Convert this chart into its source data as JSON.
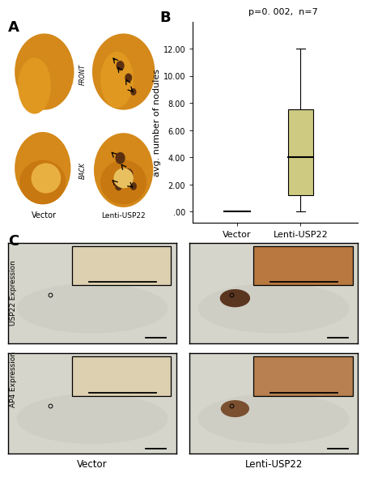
{
  "boxplot": {
    "vector_median": 0.0,
    "vector_q1": 0.0,
    "vector_q3": 0.0,
    "vector_whisker_low": 0.0,
    "vector_whisker_high": 0.0,
    "lenti_median": 4.0,
    "lenti_q1": 1.2,
    "lenti_q3": 7.5,
    "lenti_whisker_low": 0.0,
    "lenti_whisker_high": 12.0,
    "ylabel": "avg. number of nodules",
    "xlabels": [
      "Vector",
      "Lenti-USP22"
    ],
    "yticks": [
      0.0,
      2.0,
      4.0,
      6.0,
      8.0,
      10.0,
      12.0
    ],
    "ytick_labels": [
      ".00",
      "2.00",
      "4.00",
      "6.00",
      "8.00",
      "10.00",
      "12.00"
    ],
    "annotation": "p=0. 002,  n=7",
    "box_color": "#ceca82",
    "median_color": "#000000"
  },
  "background_color": "#ffffff",
  "panel_label_fontsize": 13,
  "axis_label_fontsize": 8,
  "tick_fontsize": 7,
  "annotation_fontsize": 8,
  "row_labels": [
    "USP22 Expression",
    "AP4 Expression"
  ],
  "col_labels": [
    "Vector",
    "Lenti-USP22"
  ],
  "lung_bg": "#d4891a",
  "micro_bg": "#d8d8d0",
  "inset_vector_color": "#ddd0b0",
  "inset_lenti_usp22_color": "#b87840",
  "inset_lenti_ap4_color": "#b88050"
}
